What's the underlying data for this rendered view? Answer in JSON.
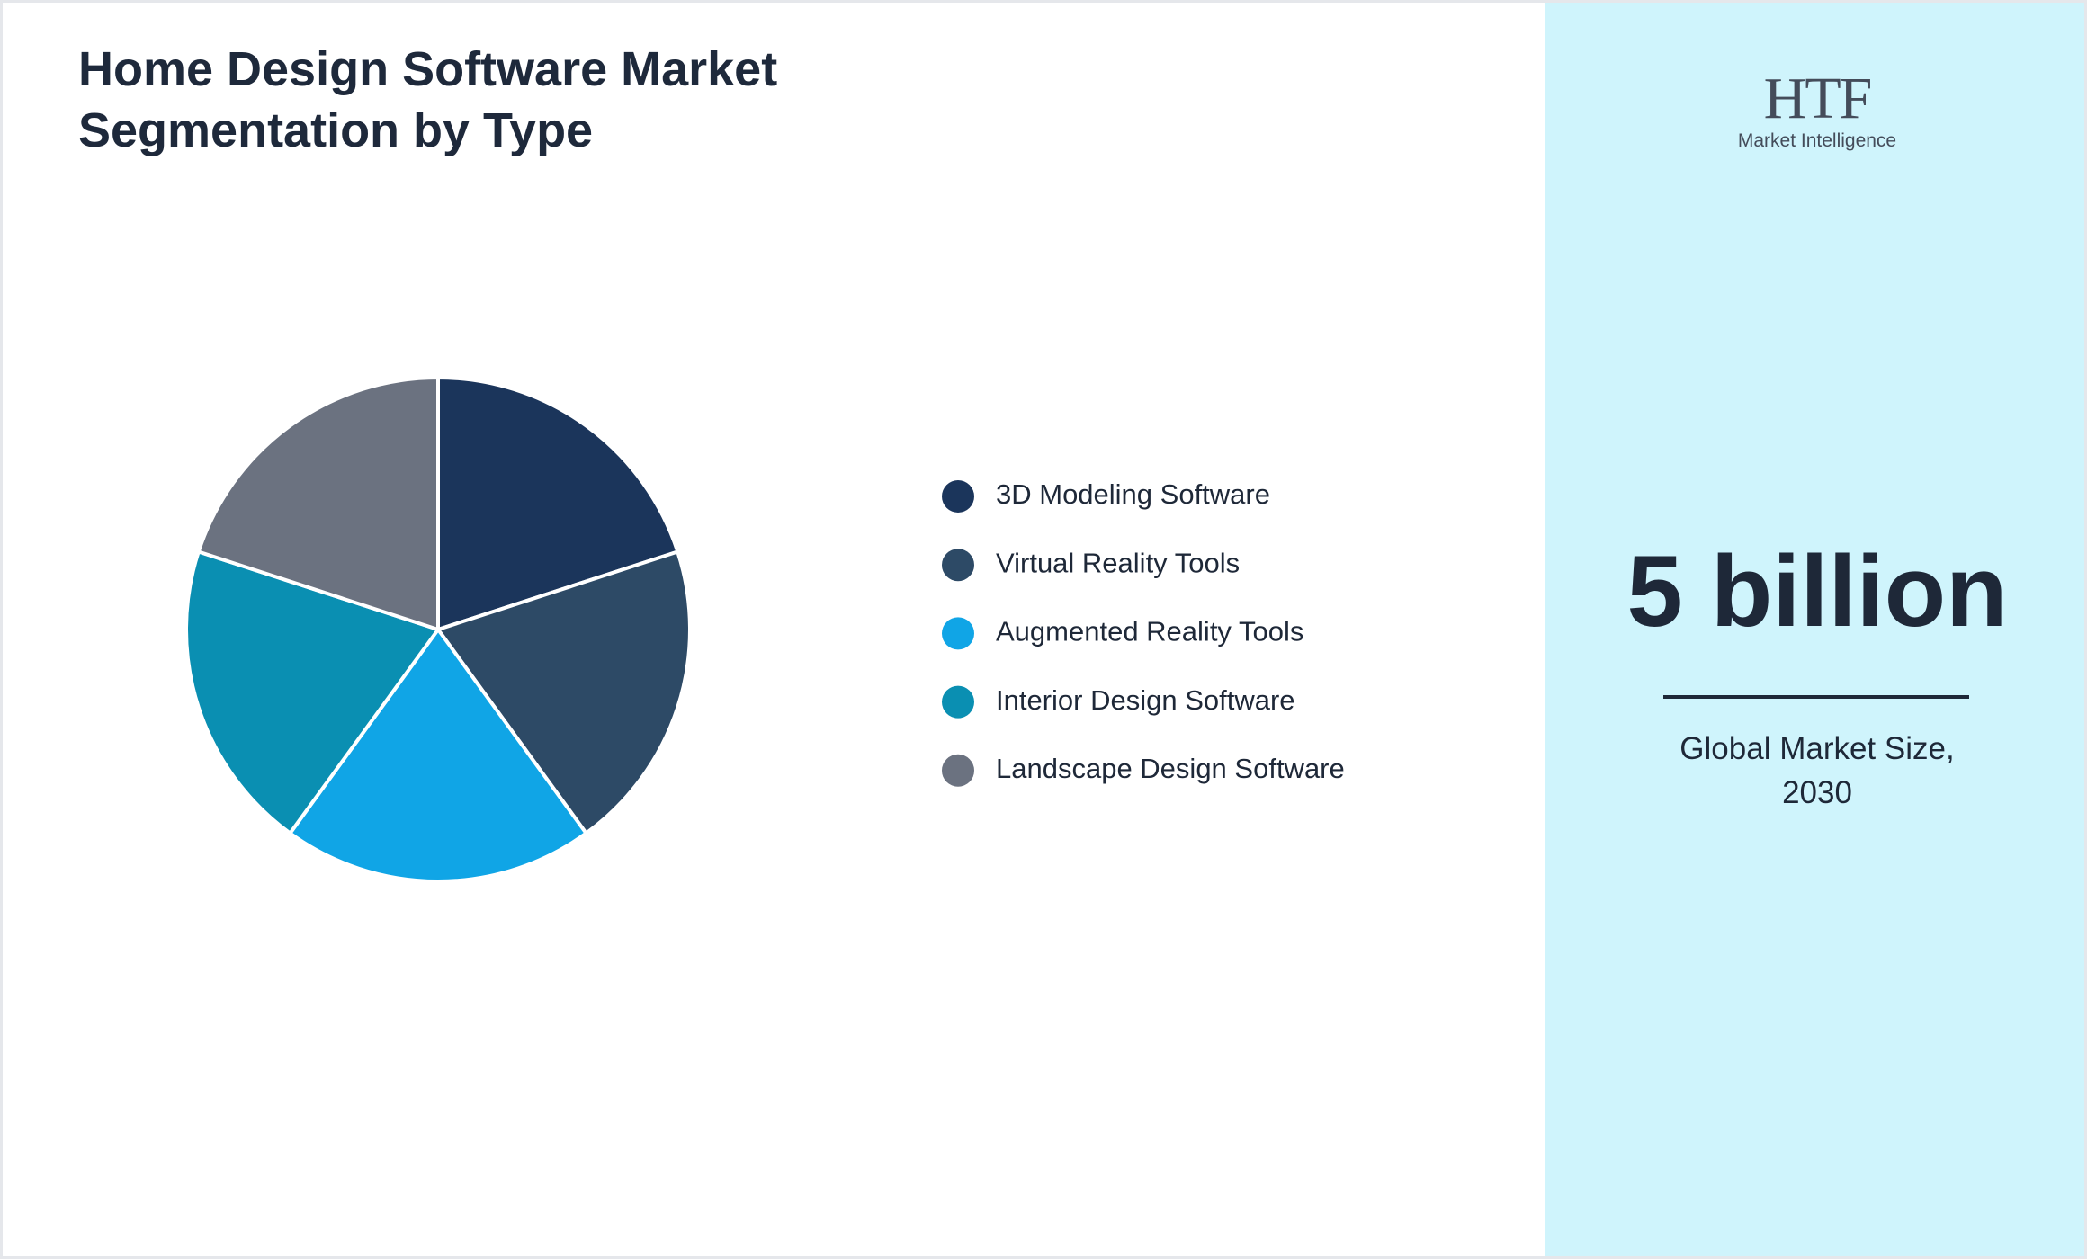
{
  "chart_data": {
    "type": "pie",
    "title": "Home Design Software Market Segmentation by Type",
    "categories": [
      "3D Modeling Software",
      "Virtual Reality Tools",
      "Augmented Reality Tools",
      "Interior Design Software",
      "Landscape Design Software"
    ],
    "values": [
      20,
      20,
      20,
      20,
      20
    ],
    "colors": [
      "#1b355b",
      "#2d4a66",
      "#10a5e6",
      "#0a8fb2",
      "#6b7280"
    ],
    "legend": "right"
  },
  "logo": {
    "text": "HTF",
    "subtext": "Market Intelligence"
  },
  "highlight": {
    "value": "5 billion",
    "caption": [
      "Global Market Size,",
      "2030"
    ]
  }
}
